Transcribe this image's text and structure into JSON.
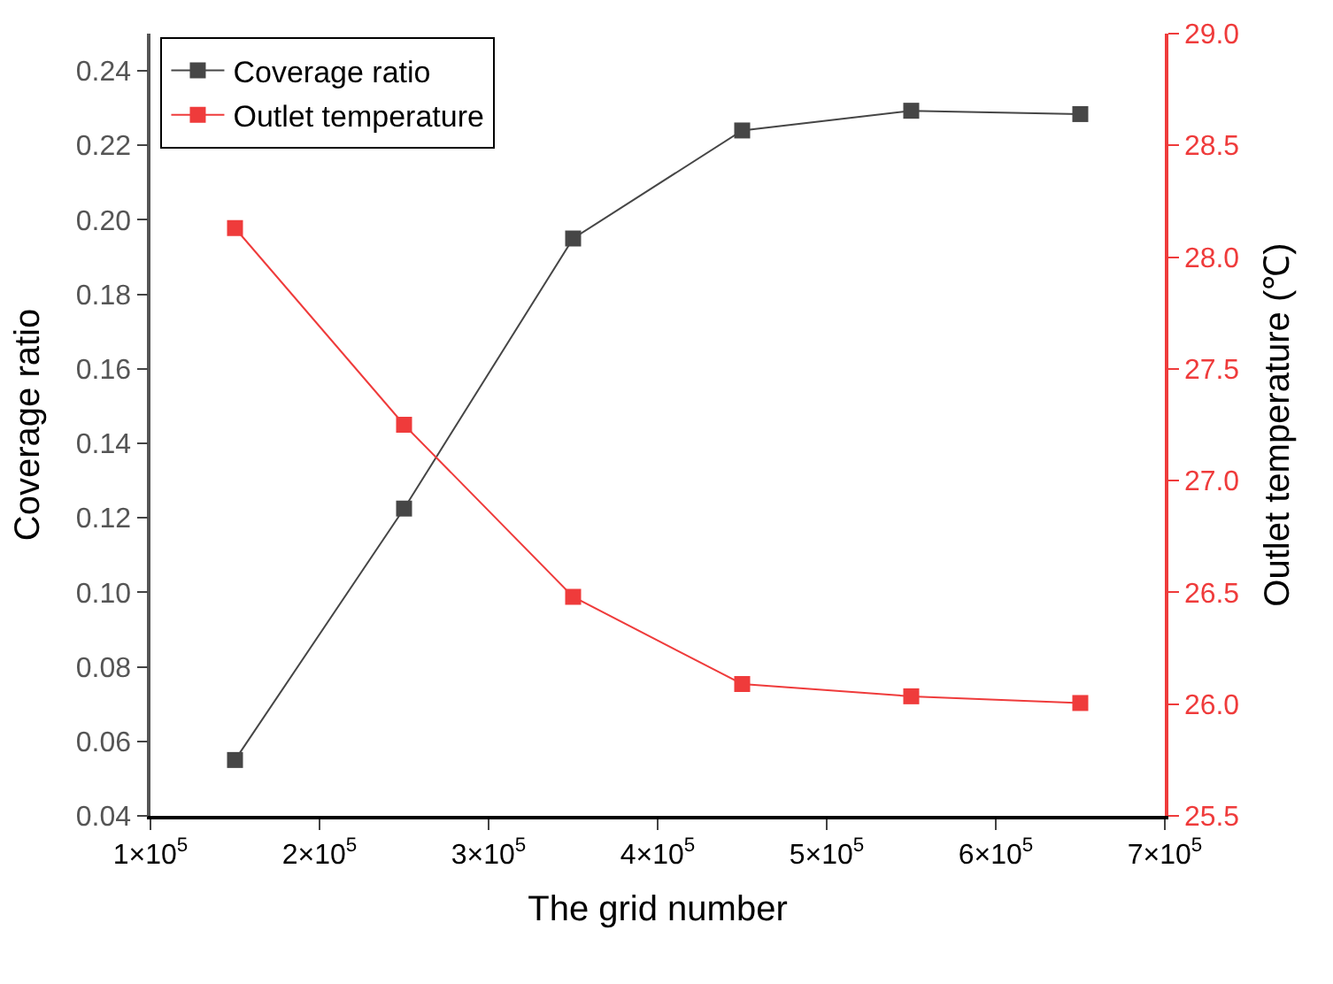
{
  "chart_data": {
    "type": "line",
    "xlabel": "The grid number",
    "ylabel": "Coverage ratio",
    "y2label": "Outlet temperature (℃)",
    "x": [
      150000,
      250000,
      350000,
      450000,
      550000,
      650000
    ],
    "series": [
      {
        "name": "Coverage ratio",
        "color": "#464646",
        "values": [
          0.055,
          0.1225,
          0.195,
          0.224,
          0.2293,
          0.2284
        ]
      },
      {
        "name": "Outlet temperature",
        "color": "#ef3b3b",
        "axis": "y2",
        "values": [
          28.13,
          27.25,
          26.48,
          26.09,
          26.035,
          26.005
        ]
      }
    ],
    "xlim": [
      100000,
      700000
    ],
    "xticks": [
      {
        "value": 100000,
        "label": "1×10$^{5}$"
      },
      {
        "value": 200000,
        "label": "2×10$^{5}$"
      },
      {
        "value": 300000,
        "label": "3×10$^{5}$"
      },
      {
        "value": 400000,
        "label": "4×10$^{5}$"
      },
      {
        "value": 500000,
        "label": "5×10$^{5}$"
      },
      {
        "value": 600000,
        "label": "6×10$^{5}$"
      },
      {
        "value": 700000,
        "label": "7×10$^{5}$"
      }
    ],
    "ylim": [
      0.04,
      0.25
    ],
    "yticks": [
      {
        "value": 0.04,
        "label": "0.04"
      },
      {
        "value": 0.06,
        "label": "0.06"
      },
      {
        "value": 0.08,
        "label": "0.08"
      },
      {
        "value": 0.1,
        "label": "0.10"
      },
      {
        "value": 0.12,
        "label": "0.12"
      },
      {
        "value": 0.14,
        "label": "0.14"
      },
      {
        "value": 0.16,
        "label": "0.16"
      },
      {
        "value": 0.18,
        "label": "0.18"
      },
      {
        "value": 0.2,
        "label": "0.20"
      },
      {
        "value": 0.22,
        "label": "0.22"
      },
      {
        "value": 0.24,
        "label": "0.24"
      }
    ],
    "y2lim": [
      25.5,
      29.0
    ],
    "y2ticks": [
      {
        "value": 25.5,
        "label": "25.5"
      },
      {
        "value": 26,
        "label": "26.0"
      },
      {
        "value": 26.5,
        "label": "26.5"
      },
      {
        "value": 27,
        "label": "27.0"
      },
      {
        "value": 27.5,
        "label": "27.5"
      },
      {
        "value": 28,
        "label": "28.0"
      },
      {
        "value": 28.5,
        "label": "28.5"
      },
      {
        "value": 29,
        "label": "29.0"
      }
    ],
    "marker": "square",
    "line_style": "solid",
    "legend": "top left"
  }
}
